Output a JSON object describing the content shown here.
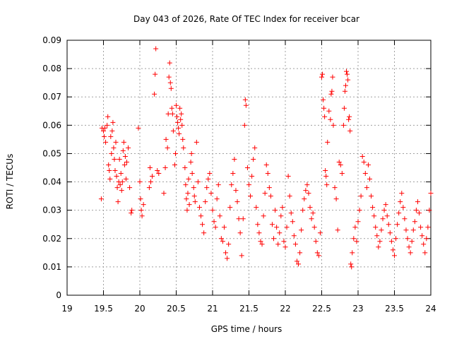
{
  "chart_data": {
    "type": "scatter",
    "title": "Day 043 of 2026, Rate Of TEC Index for receiver bcar",
    "xlabel": "GPS time / hours",
    "ylabel": "ROTI / TECUs",
    "xlim": [
      19,
      24
    ],
    "ylim": [
      0,
      0.09
    ],
    "xticks": [
      19,
      19.5,
      20,
      20.5,
      21,
      21.5,
      22,
      22.5,
      23,
      23.5,
      24
    ],
    "xtick_labels": [
      "19",
      "19.5",
      "20",
      "20.5",
      "21",
      "21.5",
      "22",
      "22.5",
      "23",
      "23.5",
      "24"
    ],
    "yticks": [
      0,
      0.01,
      0.02,
      0.03,
      0.04,
      0.05,
      0.06,
      0.07,
      0.08,
      0.09
    ],
    "ytick_labels": [
      "0",
      "0.01",
      "0.02",
      "0.03",
      "0.04",
      "0.05",
      "0.06",
      "0.07",
      "0.08",
      "0.09"
    ],
    "grid": true,
    "marker": "plus",
    "point_color": "#ff0000",
    "series": [
      {
        "points": [
          [
            19.47,
            0.034
          ],
          [
            19.48,
            0.059
          ],
          [
            19.5,
            0.058
          ],
          [
            19.51,
            0.056
          ],
          [
            19.52,
            0.059
          ],
          [
            19.53,
            0.054
          ],
          [
            19.55,
            0.06
          ],
          [
            19.56,
            0.063
          ],
          [
            19.57,
            0.046
          ],
          [
            19.58,
            0.044
          ],
          [
            19.59,
            0.041
          ],
          [
            19.6,
            0.056
          ],
          [
            19.61,
            0.05
          ],
          [
            19.62,
            0.058
          ],
          [
            19.63,
            0.061
          ],
          [
            19.64,
            0.052
          ],
          [
            19.65,
            0.048
          ],
          [
            19.66,
            0.044
          ],
          [
            19.67,
            0.054
          ],
          [
            19.68,
            0.042
          ],
          [
            19.69,
            0.038
          ],
          [
            19.7,
            0.033
          ],
          [
            19.71,
            0.04
          ],
          [
            19.72,
            0.048
          ],
          [
            19.73,
            0.039
          ],
          [
            19.74,
            0.043
          ],
          [
            19.75,
            0.037
          ],
          [
            19.76,
            0.04
          ],
          [
            19.77,
            0.051
          ],
          [
            19.78,
            0.054
          ],
          [
            19.79,
            0.046
          ],
          [
            19.8,
            0.049
          ],
          [
            19.81,
            0.041
          ],
          [
            19.82,
            0.047
          ],
          [
            19.84,
            0.052
          ],
          [
            19.86,
            0.038
          ],
          [
            19.88,
            0.029
          ],
          [
            19.89,
            0.03
          ],
          [
            19.98,
            0.059
          ],
          [
            20.0,
            0.04
          ],
          [
            20.01,
            0.034
          ],
          [
            20.02,
            0.03
          ],
          [
            20.03,
            0.028
          ],
          [
            20.05,
            0.032
          ],
          [
            20.13,
            0.038
          ],
          [
            20.14,
            0.045
          ],
          [
            20.15,
            0.04
          ],
          [
            20.17,
            0.042
          ],
          [
            20.2,
            0.071
          ],
          [
            20.21,
            0.078
          ],
          [
            20.22,
            0.087
          ],
          [
            20.24,
            0.044
          ],
          [
            20.26,
            0.043
          ],
          [
            20.33,
            0.036
          ],
          [
            20.35,
            0.045
          ],
          [
            20.36,
            0.055
          ],
          [
            20.38,
            0.052
          ],
          [
            20.39,
            0.064
          ],
          [
            20.4,
            0.077
          ],
          [
            20.41,
            0.082
          ],
          [
            20.42,
            0.075
          ],
          [
            20.43,
            0.073
          ],
          [
            20.44,
            0.066
          ],
          [
            20.45,
            0.064
          ],
          [
            20.46,
            0.058
          ],
          [
            20.48,
            0.046
          ],
          [
            20.49,
            0.05
          ],
          [
            20.5,
            0.067
          ],
          [
            20.51,
            0.063
          ],
          [
            20.52,
            0.061
          ],
          [
            20.53,
            0.059
          ],
          [
            20.54,
            0.057
          ],
          [
            20.55,
            0.066
          ],
          [
            20.56,
            0.062
          ],
          [
            20.57,
            0.064
          ],
          [
            20.58,
            0.06
          ],
          [
            20.59,
            0.055
          ],
          [
            20.6,
            0.052
          ],
          [
            20.62,
            0.045
          ],
          [
            20.63,
            0.039
          ],
          [
            20.64,
            0.034
          ],
          [
            20.65,
            0.03
          ],
          [
            20.66,
            0.036
          ],
          [
            20.67,
            0.041
          ],
          [
            20.68,
            0.032
          ],
          [
            20.7,
            0.047
          ],
          [
            20.71,
            0.05
          ],
          [
            20.72,
            0.043
          ],
          [
            20.74,
            0.038
          ],
          [
            20.75,
            0.035
          ],
          [
            20.76,
            0.033
          ],
          [
            20.78,
            0.054
          ],
          [
            20.8,
            0.04
          ],
          [
            20.82,
            0.031
          ],
          [
            20.84,
            0.028
          ],
          [
            20.86,
            0.025
          ],
          [
            20.88,
            0.022
          ],
          [
            20.9,
            0.033
          ],
          [
            20.92,
            0.038
          ],
          [
            20.94,
            0.041
          ],
          [
            20.96,
            0.043
          ],
          [
            20.98,
            0.036
          ],
          [
            21.0,
            0.03
          ],
          [
            21.02,
            0.026
          ],
          [
            21.04,
            0.024
          ],
          [
            21.06,
            0.034
          ],
          [
            21.08,
            0.039
          ],
          [
            21.1,
            0.028
          ],
          [
            21.12,
            0.02
          ],
          [
            21.14,
            0.019
          ],
          [
            21.16,
            0.024
          ],
          [
            21.18,
            0.015
          ],
          [
            21.2,
            0.013
          ],
          [
            21.22,
            0.018
          ],
          [
            21.24,
            0.031
          ],
          [
            21.26,
            0.039
          ],
          [
            21.28,
            0.043
          ],
          [
            21.3,
            0.048
          ],
          [
            21.32,
            0.037
          ],
          [
            21.34,
            0.033
          ],
          [
            21.36,
            0.027
          ],
          [
            21.38,
            0.022
          ],
          [
            21.4,
            0.014
          ],
          [
            21.42,
            0.027
          ],
          [
            21.44,
            0.06
          ],
          [
            21.45,
            0.069
          ],
          [
            21.46,
            0.067
          ],
          [
            21.48,
            0.045
          ],
          [
            21.5,
            0.039
          ],
          [
            21.52,
            0.035
          ],
          [
            21.54,
            0.042
          ],
          [
            21.56,
            0.048
          ],
          [
            21.58,
            0.052
          ],
          [
            21.6,
            0.031
          ],
          [
            21.62,
            0.025
          ],
          [
            21.64,
            0.022
          ],
          [
            21.66,
            0.019
          ],
          [
            21.68,
            0.018
          ],
          [
            21.7,
            0.028
          ],
          [
            21.72,
            0.036
          ],
          [
            21.74,
            0.046
          ],
          [
            21.76,
            0.043
          ],
          [
            21.78,
            0.038
          ],
          [
            21.8,
            0.035
          ],
          [
            21.82,
            0.025
          ],
          [
            21.84,
            0.02
          ],
          [
            21.86,
            0.03
          ],
          [
            21.88,
            0.024
          ],
          [
            21.9,
            0.018
          ],
          [
            21.92,
            0.022
          ],
          [
            21.94,
            0.028
          ],
          [
            21.96,
            0.031
          ],
          [
            21.98,
            0.019
          ],
          [
            22.0,
            0.017
          ],
          [
            22.02,
            0.024
          ],
          [
            22.04,
            0.042
          ],
          [
            22.06,
            0.035
          ],
          [
            22.08,
            0.029
          ],
          [
            22.1,
            0.026
          ],
          [
            22.12,
            0.021
          ],
          [
            22.14,
            0.018
          ],
          [
            22.16,
            0.012
          ],
          [
            22.18,
            0.011
          ],
          [
            22.2,
            0.015
          ],
          [
            22.22,
            0.023
          ],
          [
            22.24,
            0.03
          ],
          [
            22.26,
            0.034
          ],
          [
            22.28,
            0.037
          ],
          [
            22.3,
            0.039
          ],
          [
            22.32,
            0.036
          ],
          [
            22.34,
            0.031
          ],
          [
            22.36,
            0.027
          ],
          [
            22.38,
            0.029
          ],
          [
            22.4,
            0.024
          ],
          [
            22.42,
            0.019
          ],
          [
            22.44,
            0.015
          ],
          [
            22.46,
            0.014
          ],
          [
            22.48,
            0.022
          ],
          [
            22.5,
            0.077
          ],
          [
            22.51,
            0.078
          ],
          [
            22.52,
            0.069
          ],
          [
            22.53,
            0.066
          ],
          [
            22.54,
            0.063
          ],
          [
            22.55,
            0.044
          ],
          [
            22.56,
            0.042
          ],
          [
            22.57,
            0.039
          ],
          [
            22.58,
            0.054
          ],
          [
            22.6,
            0.065
          ],
          [
            22.62,
            0.062
          ],
          [
            22.63,
            0.071
          ],
          [
            22.64,
            0.072
          ],
          [
            22.65,
            0.077
          ],
          [
            22.66,
            0.06
          ],
          [
            22.68,
            0.038
          ],
          [
            22.7,
            0.034
          ],
          [
            22.72,
            0.023
          ],
          [
            22.74,
            0.047
          ],
          [
            22.76,
            0.046
          ],
          [
            22.78,
            0.043
          ],
          [
            22.8,
            0.06
          ],
          [
            22.81,
            0.066
          ],
          [
            22.82,
            0.072
          ],
          [
            22.83,
            0.074
          ],
          [
            22.84,
            0.079
          ],
          [
            22.85,
            0.078
          ],
          [
            22.86,
            0.076
          ],
          [
            22.87,
            0.062
          ],
          [
            22.88,
            0.063
          ],
          [
            22.89,
            0.058
          ],
          [
            22.9,
            0.011
          ],
          [
            22.91,
            0.01
          ],
          [
            22.92,
            0.015
          ],
          [
            22.94,
            0.02
          ],
          [
            22.96,
            0.024
          ],
          [
            22.98,
            0.019
          ],
          [
            23.0,
            0.026
          ],
          [
            23.02,
            0.03
          ],
          [
            23.04,
            0.035
          ],
          [
            23.06,
            0.049
          ],
          [
            23.08,
            0.047
          ],
          [
            23.1,
            0.043
          ],
          [
            23.12,
            0.038
          ],
          [
            23.14,
            0.046
          ],
          [
            23.16,
            0.041
          ],
          [
            23.18,
            0.035
          ],
          [
            23.2,
            0.031
          ],
          [
            23.22,
            0.028
          ],
          [
            23.24,
            0.024
          ],
          [
            23.26,
            0.021
          ],
          [
            23.28,
            0.017
          ],
          [
            23.3,
            0.019
          ],
          [
            23.32,
            0.023
          ],
          [
            23.34,
            0.027
          ],
          [
            23.36,
            0.03
          ],
          [
            23.38,
            0.032
          ],
          [
            23.4,
            0.028
          ],
          [
            23.42,
            0.025
          ],
          [
            23.44,
            0.022
          ],
          [
            23.46,
            0.019
          ],
          [
            23.48,
            0.016
          ],
          [
            23.5,
            0.014
          ],
          [
            23.52,
            0.02
          ],
          [
            23.54,
            0.025
          ],
          [
            23.56,
            0.029
          ],
          [
            23.58,
            0.033
          ],
          [
            23.6,
            0.036
          ],
          [
            23.62,
            0.031
          ],
          [
            23.64,
            0.027
          ],
          [
            23.66,
            0.023
          ],
          [
            23.68,
            0.02
          ],
          [
            23.7,
            0.017
          ],
          [
            23.72,
            0.015
          ],
          [
            23.74,
            0.019
          ],
          [
            23.76,
            0.023
          ],
          [
            23.78,
            0.026
          ],
          [
            23.8,
            0.03
          ],
          [
            23.82,
            0.033
          ],
          [
            23.84,
            0.029
          ],
          [
            23.86,
            0.024
          ],
          [
            23.88,
            0.021
          ],
          [
            23.9,
            0.018
          ],
          [
            23.92,
            0.015
          ],
          [
            23.94,
            0.02
          ],
          [
            23.96,
            0.024
          ],
          [
            23.98,
            0.03
          ],
          [
            24.0,
            0.036
          ]
        ]
      }
    ]
  }
}
